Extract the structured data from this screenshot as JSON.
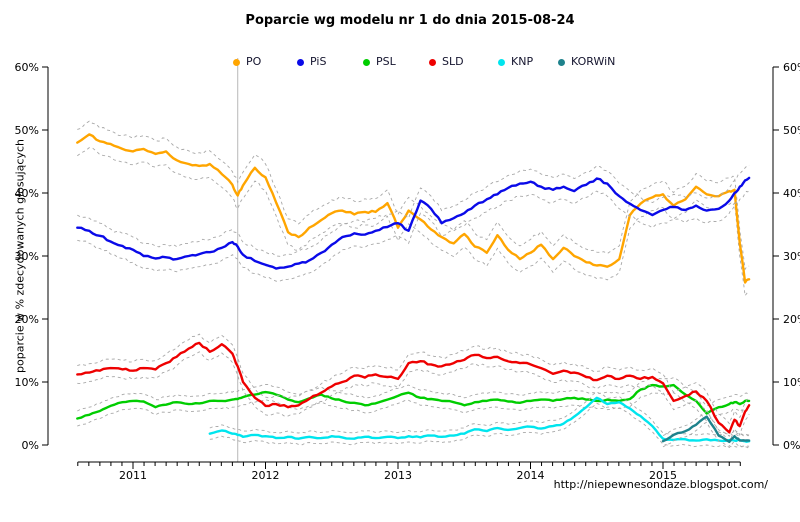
{
  "title": "Poparcie wg modelu nr 1 do dnia 2015-08-24",
  "y_axis_label": "poparcie w % zdecydowanych głosujących",
  "watermark": "http://niepewnesondaze.blogspot.com/",
  "chart_data": {
    "type": "line",
    "title": "Poparcie wg modelu nr 1 do dnia 2015-08-24",
    "xlabel": "",
    "ylabel": "poparcie w % zdecydowanych głosujących",
    "ylim": [
      0,
      60
    ],
    "y_ticks": [
      "0%",
      "10%",
      "20%",
      "30%",
      "40%",
      "50%",
      "60%"
    ],
    "y_tick_values": [
      0,
      10,
      20,
      30,
      40,
      50,
      60
    ],
    "x_ticks_years": [
      2011,
      2012,
      2013,
      2014,
      2015
    ],
    "x_range": [
      2010.58,
      2015.65
    ],
    "grid": false,
    "legend_position": "top",
    "dual_y_axis": true,
    "event_line_x": 2011.79,
    "event_line_note": "vertical gray line (Oct 2011 parliamentary election)",
    "bands_note": "dashed gray lines are confidence bands at value ± ci per series",
    "x": [
      2010.58,
      2010.67,
      2010.75,
      2010.83,
      2010.92,
      2011.0,
      2011.08,
      2011.17,
      2011.25,
      2011.33,
      2011.42,
      2011.5,
      2011.58,
      2011.67,
      2011.75,
      2011.79,
      2011.83,
      2011.92,
      2012.0,
      2012.08,
      2012.17,
      2012.25,
      2012.33,
      2012.42,
      2012.5,
      2012.58,
      2012.67,
      2012.75,
      2012.83,
      2012.92,
      2013.0,
      2013.08,
      2013.17,
      2013.25,
      2013.33,
      2013.42,
      2013.5,
      2013.58,
      2013.67,
      2013.75,
      2013.83,
      2013.92,
      2014.0,
      2014.08,
      2014.17,
      2014.25,
      2014.33,
      2014.42,
      2014.5,
      2014.58,
      2014.67,
      2014.75,
      2014.83,
      2014.92,
      2015.0,
      2015.08,
      2015.17,
      2015.25,
      2015.33,
      2015.42,
      2015.5,
      2015.54,
      2015.58,
      2015.62,
      2015.65
    ],
    "series": [
      {
        "name": "PO",
        "color": "#FFA500",
        "ci": 2.1,
        "values": [
          48.0,
          49.3,
          48.2,
          47.8,
          47.0,
          46.6,
          47.0,
          46.2,
          46.6,
          45.2,
          44.6,
          44.3,
          44.6,
          43.0,
          41.3,
          39.6,
          41.2,
          44.0,
          42.5,
          38.5,
          33.8,
          33.0,
          34.5,
          35.7,
          36.8,
          37.2,
          36.6,
          37.0,
          37.0,
          38.4,
          34.5,
          37.2,
          35.8,
          34.2,
          33.0,
          32.0,
          33.5,
          31.5,
          30.5,
          33.3,
          31.0,
          29.5,
          30.5,
          31.8,
          29.5,
          31.3,
          30.0,
          29.0,
          28.5,
          28.3,
          29.5,
          36.5,
          38.3,
          39.3,
          39.8,
          38.0,
          39.0,
          41.0,
          39.8,
          39.5,
          40.3,
          40.5,
          32.0,
          25.8,
          26.3
        ]
      },
      {
        "name": "PiS",
        "color": "#0A0AE8",
        "ci": 2.0,
        "values": [
          34.5,
          34.0,
          33.2,
          32.3,
          31.6,
          31.0,
          30.0,
          29.6,
          29.8,
          29.5,
          30.0,
          30.3,
          30.6,
          31.3,
          32.2,
          31.5,
          30.2,
          29.2,
          28.6,
          28.0,
          28.3,
          28.8,
          29.3,
          30.5,
          31.8,
          33.0,
          33.6,
          33.4,
          34.0,
          34.6,
          35.2,
          34.0,
          38.8,
          37.5,
          35.2,
          36.0,
          36.8,
          38.0,
          39.0,
          39.8,
          40.8,
          41.5,
          41.8,
          41.0,
          40.5,
          41.0,
          40.3,
          41.3,
          42.3,
          41.5,
          39.5,
          38.3,
          37.3,
          36.5,
          37.3,
          37.8,
          37.3,
          38.0,
          37.2,
          37.5,
          38.8,
          40.0,
          41.0,
          42.0,
          42.4
        ]
      },
      {
        "name": "PSL",
        "color": "#00CD00",
        "ci": 1.2,
        "values": [
          4.2,
          4.8,
          5.4,
          6.2,
          6.8,
          7.0,
          6.9,
          6.0,
          6.4,
          6.8,
          6.5,
          6.6,
          7.0,
          7.0,
          7.2,
          7.3,
          7.6,
          8.0,
          8.4,
          8.0,
          7.2,
          6.8,
          7.4,
          8.0,
          7.4,
          7.0,
          6.7,
          6.3,
          6.6,
          7.2,
          7.8,
          8.3,
          7.5,
          7.3,
          7.0,
          6.8,
          6.3,
          6.8,
          7.0,
          7.2,
          6.9,
          6.7,
          7.0,
          7.2,
          7.0,
          7.3,
          7.5,
          7.2,
          7.0,
          7.2,
          7.0,
          7.3,
          8.8,
          9.5,
          9.3,
          9.5,
          8.0,
          7.0,
          5.0,
          6.0,
          6.5,
          6.8,
          6.5,
          7.0,
          7.0
        ]
      },
      {
        "name": "SLD",
        "color": "#EE0000",
        "ci": 1.4,
        "values": [
          11.2,
          11.5,
          11.8,
          12.2,
          12.0,
          11.8,
          12.2,
          12.0,
          13.0,
          14.0,
          15.3,
          16.2,
          14.8,
          16.0,
          14.5,
          12.5,
          10.0,
          7.5,
          6.2,
          6.5,
          6.0,
          6.3,
          7.3,
          8.3,
          9.3,
          10.0,
          11.0,
          10.7,
          11.2,
          10.8,
          10.5,
          13.0,
          13.3,
          12.8,
          12.5,
          13.0,
          13.5,
          14.3,
          13.8,
          14.0,
          13.3,
          13.0,
          12.8,
          12.2,
          11.3,
          11.8,
          11.5,
          10.8,
          10.3,
          11.0,
          10.5,
          11.0,
          10.5,
          10.8,
          9.8,
          7.0,
          7.8,
          8.5,
          7.0,
          3.5,
          2.0,
          4.0,
          3.0,
          5.3,
          6.3
        ]
      },
      {
        "name": "KNP",
        "color": "#00E5EE",
        "ci": 0.9,
        "values": [
          null,
          null,
          null,
          null,
          null,
          null,
          null,
          null,
          null,
          null,
          null,
          null,
          1.8,
          2.3,
          1.8,
          1.6,
          1.3,
          1.6,
          1.4,
          1.1,
          1.3,
          1.0,
          1.3,
          1.1,
          1.4,
          1.2,
          1.0,
          1.3,
          1.1,
          1.3,
          1.1,
          1.4,
          1.2,
          1.5,
          1.3,
          1.5,
          1.8,
          2.5,
          2.2,
          2.7,
          2.4,
          2.7,
          2.9,
          2.6,
          3.0,
          3.4,
          4.5,
          6.0,
          7.5,
          6.5,
          6.8,
          5.8,
          4.6,
          3.0,
          1.0,
          0.8,
          0.9,
          0.7,
          0.9,
          0.7,
          0.8,
          0.7,
          0.8,
          0.6,
          0.6
        ]
      },
      {
        "name": "KORWiN",
        "color": "#1E828C",
        "ci": 0.9,
        "values": [
          null,
          null,
          null,
          null,
          null,
          null,
          null,
          null,
          null,
          null,
          null,
          null,
          null,
          null,
          null,
          null,
          null,
          null,
          null,
          null,
          null,
          null,
          null,
          null,
          null,
          null,
          null,
          null,
          null,
          null,
          null,
          null,
          null,
          null,
          null,
          null,
          null,
          null,
          null,
          null,
          null,
          null,
          null,
          null,
          null,
          null,
          null,
          null,
          null,
          null,
          null,
          null,
          null,
          null,
          0.6,
          1.6,
          2.2,
          3.2,
          4.5,
          1.5,
          0.5,
          1.4,
          0.7,
          0.7,
          0.7
        ]
      }
    ],
    "colors_misc": {
      "band": "#A8A8A8",
      "event_line": "#C4C4C4",
      "axis": "#000000"
    }
  }
}
